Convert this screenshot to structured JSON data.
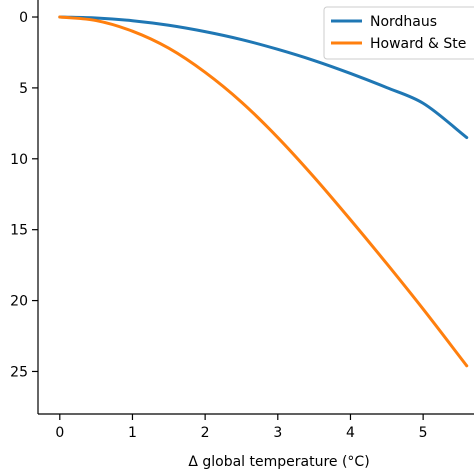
{
  "chart_data": {
    "type": "line",
    "xlabel": "Δ global temperature (°C)",
    "ylabel": "",
    "xlim": [
      -0.3,
      5.7
    ],
    "ylim": [
      28,
      -1.2
    ],
    "x_ticks": [
      0,
      1,
      2,
      3,
      4,
      5
    ],
    "x_tick_labels": [
      "0",
      "1",
      "2",
      "3",
      "4",
      "5"
    ],
    "y_ticks": [
      0,
      5,
      10,
      15,
      20,
      25
    ],
    "y_tick_labels": [
      "0",
      "5",
      "10",
      "15",
      "20",
      "25"
    ],
    "grid": false,
    "legend_position": "top-right",
    "series": [
      {
        "name": "Nordhaus",
        "color": "#1f77b4",
        "x": [
          0,
          0.5,
          1,
          1.5,
          2,
          2.5,
          3,
          3.5,
          4,
          4.5,
          5,
          5.6
        ],
        "values": [
          0,
          0.07,
          0.26,
          0.58,
          1.03,
          1.59,
          2.28,
          3.07,
          3.98,
          4.98,
          6.08,
          8.5
        ]
      },
      {
        "name": "Howard & Ste",
        "color": "#ff7f0e",
        "x": [
          0,
          0.5,
          1,
          1.5,
          2,
          2.5,
          3,
          3.5,
          4,
          4.5,
          5,
          5.6
        ],
        "values": [
          0,
          0.25,
          1.0,
          2.2,
          3.9,
          6.0,
          8.5,
          11.3,
          14.3,
          17.4,
          20.6,
          24.6
        ]
      }
    ]
  }
}
